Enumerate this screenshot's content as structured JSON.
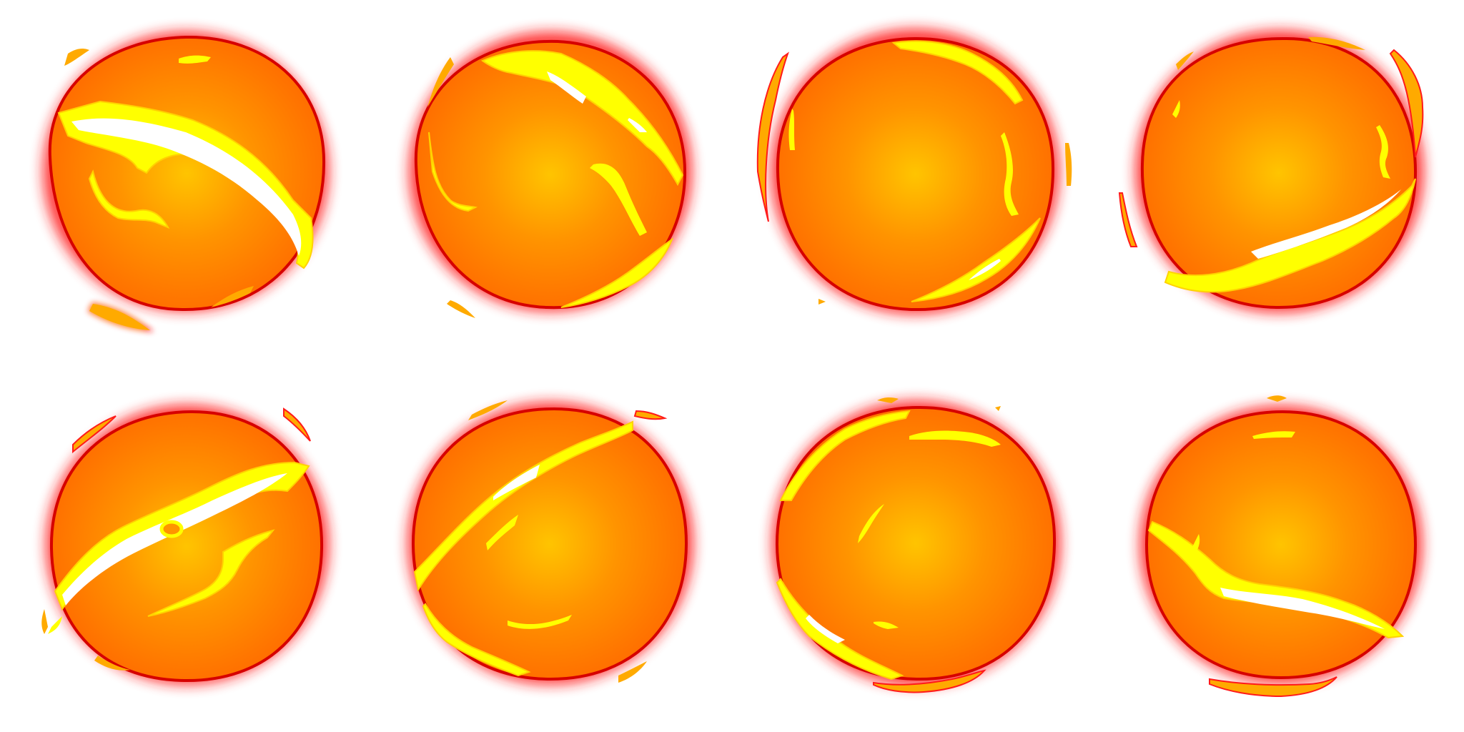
{
  "sheet": {
    "title": "",
    "background": "#ffffff",
    "columns": 4,
    "rows": 2
  },
  "palette": {
    "core": "#ffc400",
    "mid": "#ff9400",
    "edge": "#ff6a00",
    "outline": "#d60000",
    "glow": "#ff1a1a",
    "crack": "#ffff00",
    "crack_dark": "#ffd200",
    "hot": "#ffffff",
    "ember": "#ffaa00"
  },
  "frames": [
    {
      "name": "fireball-frame-1",
      "icon": "fireball-icon"
    },
    {
      "name": "fireball-frame-2",
      "icon": "fireball-icon"
    },
    {
      "name": "fireball-frame-3",
      "icon": "fireball-icon"
    },
    {
      "name": "fireball-frame-4",
      "icon": "fireball-icon"
    },
    {
      "name": "fireball-frame-5",
      "icon": "fireball-icon"
    },
    {
      "name": "fireball-frame-6",
      "icon": "fireball-icon"
    },
    {
      "name": "fireball-frame-7",
      "icon": "fireball-icon"
    },
    {
      "name": "fireball-frame-8",
      "icon": "fireball-icon"
    }
  ]
}
